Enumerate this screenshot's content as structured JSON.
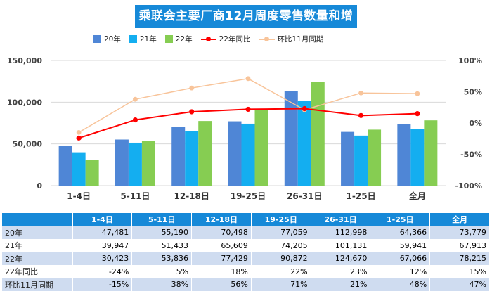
{
  "title": "乘联会主要厂商12月周度零售数量和增速",
  "legend": [
    {
      "label": "20年",
      "color": "#4f86d6",
      "kind": "bar"
    },
    {
      "label": "21年",
      "color": "#14aef0",
      "kind": "bar"
    },
    {
      "label": "22年",
      "color": "#86cd52",
      "kind": "bar"
    },
    {
      "label": "22年同比",
      "color": "#ff0000",
      "kind": "line"
    },
    {
      "label": "环比11月同期",
      "color": "#f8c49a",
      "kind": "line"
    }
  ],
  "chart_data": {
    "type": "bar",
    "title": "乘联会主要厂商12月周度零售数量和增速",
    "categories": [
      "1-4日",
      "5-11日",
      "12-18日",
      "19-25日",
      "26-31日",
      "1-25日",
      "全月"
    ],
    "series": [
      {
        "name": "20年",
        "type": "bar",
        "axis": "left",
        "values": [
          47481,
          55190,
          70498,
          77059,
          112998,
          64366,
          73779
        ]
      },
      {
        "name": "21年",
        "type": "bar",
        "axis": "left",
        "values": [
          39947,
          51433,
          65609,
          74205,
          101131,
          59941,
          67913
        ]
      },
      {
        "name": "22年",
        "type": "bar",
        "axis": "left",
        "values": [
          30423,
          53836,
          77429,
          90872,
          124670,
          67066,
          78215
        ]
      },
      {
        "name": "22年同比",
        "type": "line",
        "axis": "right",
        "values": [
          -24,
          5,
          18,
          22,
          23,
          12,
          15
        ]
      },
      {
        "name": "环比11月同期",
        "type": "line",
        "axis": "right",
        "values": [
          -15,
          38,
          56,
          71,
          21,
          48,
          47
        ]
      }
    ],
    "y_left": {
      "min": 0,
      "max": 150000,
      "ticks": [
        "0",
        "50,000",
        "100,000",
        "150,000"
      ],
      "tick_values": [
        0,
        50000,
        100000,
        150000
      ]
    },
    "y_right": {
      "min": -100,
      "max": 100,
      "ticks": [
        "-100%",
        "-50%",
        "0%",
        "50%",
        "100%"
      ],
      "tick_values": [
        -100,
        -50,
        0,
        50,
        100
      ]
    },
    "grid": true,
    "legend_position": "top"
  },
  "table": {
    "headers": [
      "",
      "1-4日",
      "5-11日",
      "12-18日",
      "19-25日",
      "26-31日",
      "1-25日",
      "全月"
    ],
    "rows": [
      {
        "label": "20年",
        "cells": [
          "47,481",
          "55,190",
          "70,498",
          "77,059",
          "112,998",
          "64,366",
          "73,779"
        ]
      },
      {
        "label": "21年",
        "cells": [
          "39,947",
          "51,433",
          "65,609",
          "74,205",
          "101,131",
          "59,941",
          "67,913"
        ]
      },
      {
        "label": "22年",
        "cells": [
          "30,423",
          "53,836",
          "77,429",
          "90,872",
          "124,670",
          "67,066",
          "78,215"
        ]
      },
      {
        "label": "22年同比",
        "cells": [
          "-24%",
          "5%",
          "18%",
          "22%",
          "23%",
          "12%",
          "15%"
        ]
      },
      {
        "label": "环比11月同期",
        "cells": [
          "-15%",
          "38%",
          "56%",
          "71%",
          "21%",
          "48%",
          "47%"
        ]
      }
    ]
  }
}
